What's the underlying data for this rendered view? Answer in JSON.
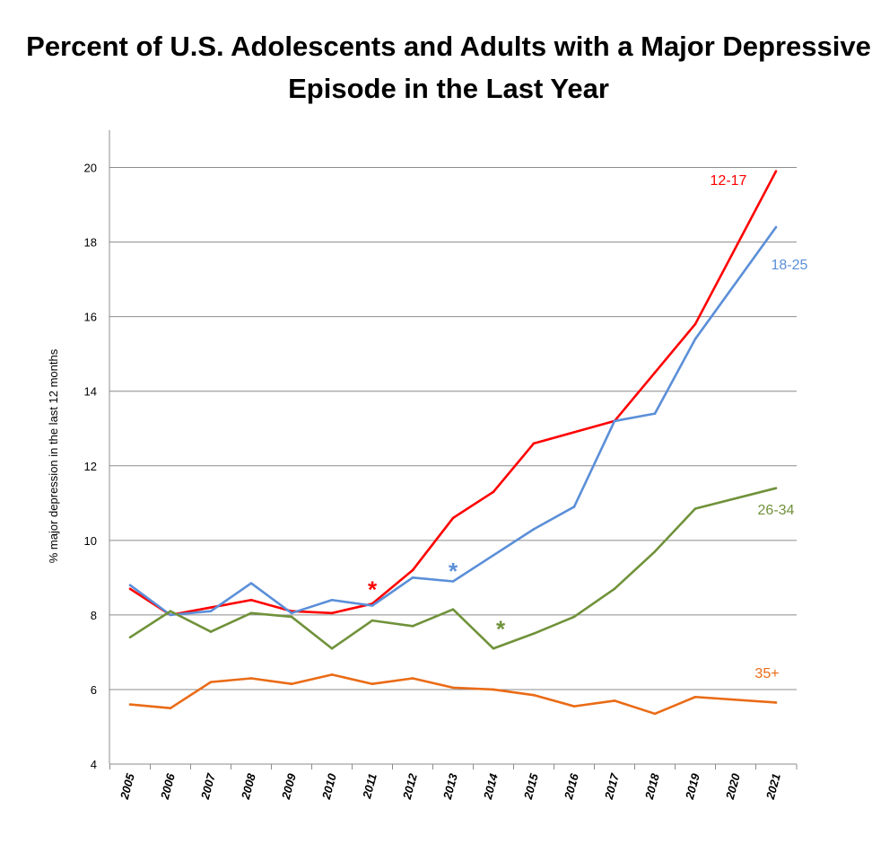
{
  "chart_data": {
    "type": "line",
    "title": "Percent of U.S. Adolescents and Adults with a Major Depressive Episode in the Last Year",
    "xlabel": "",
    "ylabel": "% major depression in the last 12 months",
    "ylim": [
      4,
      21
    ],
    "yticks": [
      4,
      6,
      8,
      10,
      12,
      14,
      16,
      18,
      20
    ],
    "grid": true,
    "x": [
      "2005",
      "2006",
      "2007",
      "2008",
      "2009",
      "2010",
      "2011",
      "2012",
      "2013",
      "2014",
      "2015",
      "2016",
      "2017",
      "2018",
      "2019",
      "2020",
      "2021"
    ],
    "series": [
      {
        "name": "12-17",
        "color": "#ff0000",
        "values": [
          8.7,
          8.0,
          8.2,
          8.4,
          8.1,
          8.05,
          8.3,
          9.2,
          10.6,
          11.3,
          12.6,
          12.9,
          13.2,
          14.5,
          15.8,
          null,
          19.9
        ]
      },
      {
        "name": "18-25",
        "color": "#5b8fd8",
        "values": [
          8.8,
          8.0,
          8.1,
          8.85,
          8.05,
          8.4,
          8.25,
          9.0,
          8.9,
          9.6,
          10.3,
          10.9,
          13.2,
          13.4,
          15.4,
          null,
          18.4
        ]
      },
      {
        "name": "26-34",
        "color": "#70923a",
        "values": [
          7.4,
          8.1,
          7.55,
          8.05,
          7.95,
          7.1,
          7.85,
          7.7,
          8.15,
          7.1,
          7.5,
          7.95,
          8.7,
          9.7,
          10.85,
          null,
          11.4
        ]
      },
      {
        "name": "35+",
        "color": "#ea6b16",
        "values": [
          5.6,
          5.5,
          6.2,
          6.3,
          6.15,
          6.4,
          6.15,
          6.3,
          6.05,
          6.0,
          5.85,
          5.55,
          5.7,
          5.35,
          5.8,
          null,
          5.65
        ]
      }
    ],
    "annotations": [
      {
        "text": "*",
        "color": "#ff0000",
        "x": "2011",
        "y": 8.8
      },
      {
        "text": "*",
        "color": "#5b8fd8",
        "x": "2013",
        "y": 9.3
      },
      {
        "text": "*",
        "color": "#70923a",
        "x": "2014",
        "y": 7.75
      }
    ],
    "legend": "inline labels at line ends"
  }
}
